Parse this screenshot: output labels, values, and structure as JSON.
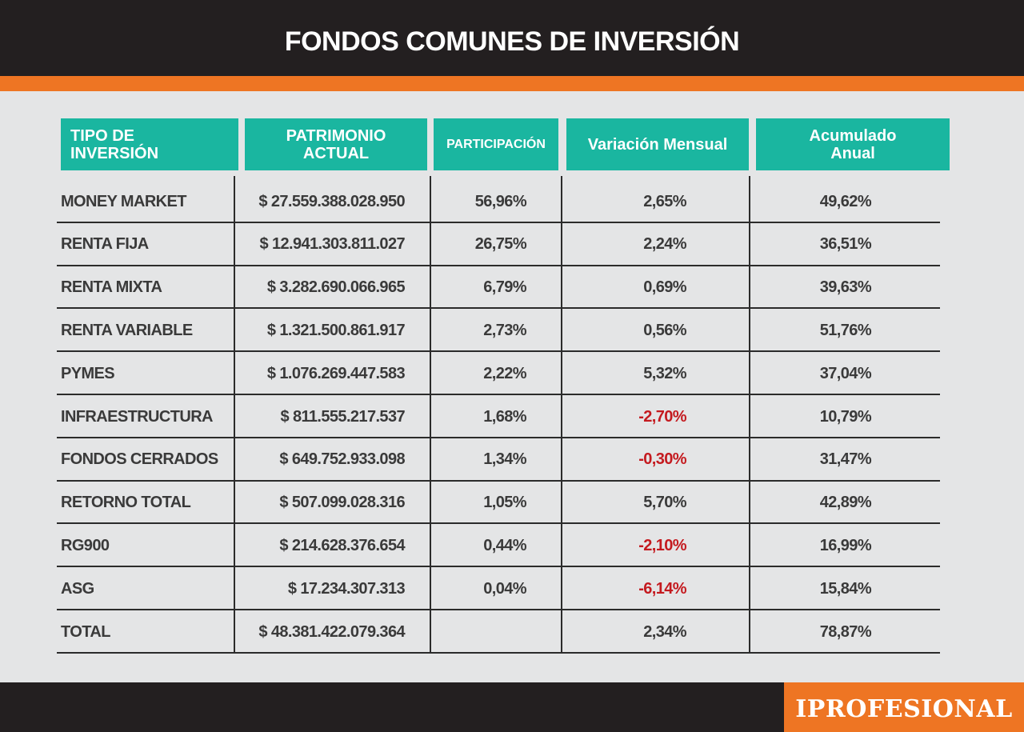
{
  "title": "FONDOS COMUNES DE INVERSIÓN",
  "colors": {
    "dark_bar": "#231f20",
    "accent_orange": "#ee7523",
    "header_teal": "#1ab6a0",
    "negative_red": "#c41a1f",
    "background": "#e4e5e6"
  },
  "table": {
    "headers": [
      {
        "line1": "TIPO DE",
        "line2": "INVERSIÓN"
      },
      {
        "line1": "PATRIMONIO",
        "line2": "ACTUAL"
      },
      {
        "line1": "PARTICIPACIÓN",
        "line2": ""
      },
      {
        "line1": "Variación Mensual",
        "line2": ""
      },
      {
        "line1": "Acumulado",
        "line2": "Anual"
      }
    ],
    "rows": [
      {
        "name": "MONEY MARKET",
        "patrimonio": "$ 27.559.388.028.950",
        "participacion": "56,96%",
        "variacion": "2,65%",
        "acumulado": "49,62%",
        "variacion_negative": false
      },
      {
        "name": "RENTA FIJA",
        "patrimonio": "$ 12.941.303.811.027",
        "participacion": "26,75%",
        "variacion": "2,24%",
        "acumulado": "36,51%",
        "variacion_negative": false
      },
      {
        "name": "RENTA MIXTA",
        "patrimonio": "$ 3.282.690.066.965",
        "participacion": "6,79%",
        "variacion": "0,69%",
        "acumulado": "39,63%",
        "variacion_negative": false
      },
      {
        "name": "RENTA VARIABLE",
        "patrimonio": "$ 1.321.500.861.917",
        "participacion": "2,73%",
        "variacion": "0,56%",
        "acumulado": "51,76%",
        "variacion_negative": false
      },
      {
        "name": "PYMES",
        "patrimonio": "$ 1.076.269.447.583",
        "participacion": "2,22%",
        "variacion": "5,32%",
        "acumulado": "37,04%",
        "variacion_negative": false
      },
      {
        "name": "INFRAESTRUCTURA",
        "patrimonio": "$ 811.555.217.537",
        "participacion": "1,68%",
        "variacion": "-2,70%",
        "acumulado": "10,79%",
        "variacion_negative": true
      },
      {
        "name": "FONDOS CERRADOS",
        "patrimonio": "$ 649.752.933.098",
        "participacion": "1,34%",
        "variacion": "-0,30%",
        "acumulado": "31,47%",
        "variacion_negative": true
      },
      {
        "name": "RETORNO TOTAL",
        "patrimonio": "$ 507.099.028.316",
        "participacion": "1,05%",
        "variacion": "5,70%",
        "acumulado": "42,89%",
        "variacion_negative": false
      },
      {
        "name": "RG900",
        "patrimonio": "$ 214.628.376.654",
        "participacion": "0,44%",
        "variacion": "-2,10%",
        "acumulado": "16,99%",
        "variacion_negative": true
      },
      {
        "name": "ASG",
        "patrimonio": "$ 17.234.307.313",
        "participacion": "0,04%",
        "variacion": "-6,14%",
        "acumulado": "15,84%",
        "variacion_negative": true
      },
      {
        "name": "TOTAL",
        "patrimonio": "$ 48.381.422.079.364",
        "participacion": "",
        "variacion": "2,34%",
        "acumulado": "78,87%",
        "variacion_negative": false
      }
    ]
  },
  "chart_data": {
    "type": "table",
    "title": "FONDOS COMUNES DE INVERSIÓN",
    "columns": [
      "TIPO DE INVERSIÓN",
      "PATRIMONIO ACTUAL",
      "PARTICIPACIÓN",
      "Variación Mensual",
      "Acumulado Anual"
    ],
    "rows": [
      [
        "MONEY MARKET",
        "$ 27.559.388.028.950",
        "56,96%",
        "2,65%",
        "49,62%"
      ],
      [
        "RENTA FIJA",
        "$ 12.941.303.811.027",
        "26,75%",
        "2,24%",
        "36,51%"
      ],
      [
        "RENTA MIXTA",
        "$ 3.282.690.066.965",
        "6,79%",
        "0,69%",
        "39,63%"
      ],
      [
        "RENTA VARIABLE",
        "$ 1.321.500.861.917",
        "2,73%",
        "0,56%",
        "51,76%"
      ],
      [
        "PYMES",
        "$ 1.076.269.447.583",
        "2,22%",
        "5,32%",
        "37,04%"
      ],
      [
        "INFRAESTRUCTURA",
        "$ 811.555.217.537",
        "1,68%",
        "-2,70%",
        "10,79%"
      ],
      [
        "FONDOS CERRADOS",
        "$ 649.752.933.098",
        "1,34%",
        "-0,30%",
        "31,47%"
      ],
      [
        "RETORNO TOTAL",
        "$ 507.099.028.316",
        "1,05%",
        "5,70%",
        "42,89%"
      ],
      [
        "RG900",
        "$ 214.628.376.654",
        "0,44%",
        "-2,10%",
        "16,99%"
      ],
      [
        "ASG",
        "$ 17.234.307.313",
        "0,04%",
        "-6,14%",
        "15,84%"
      ],
      [
        "TOTAL",
        "$ 48.381.422.079.364",
        "",
        "2,34%",
        "78,87%"
      ]
    ]
  },
  "footer": {
    "logo_text": "IPROFESIONAL"
  }
}
